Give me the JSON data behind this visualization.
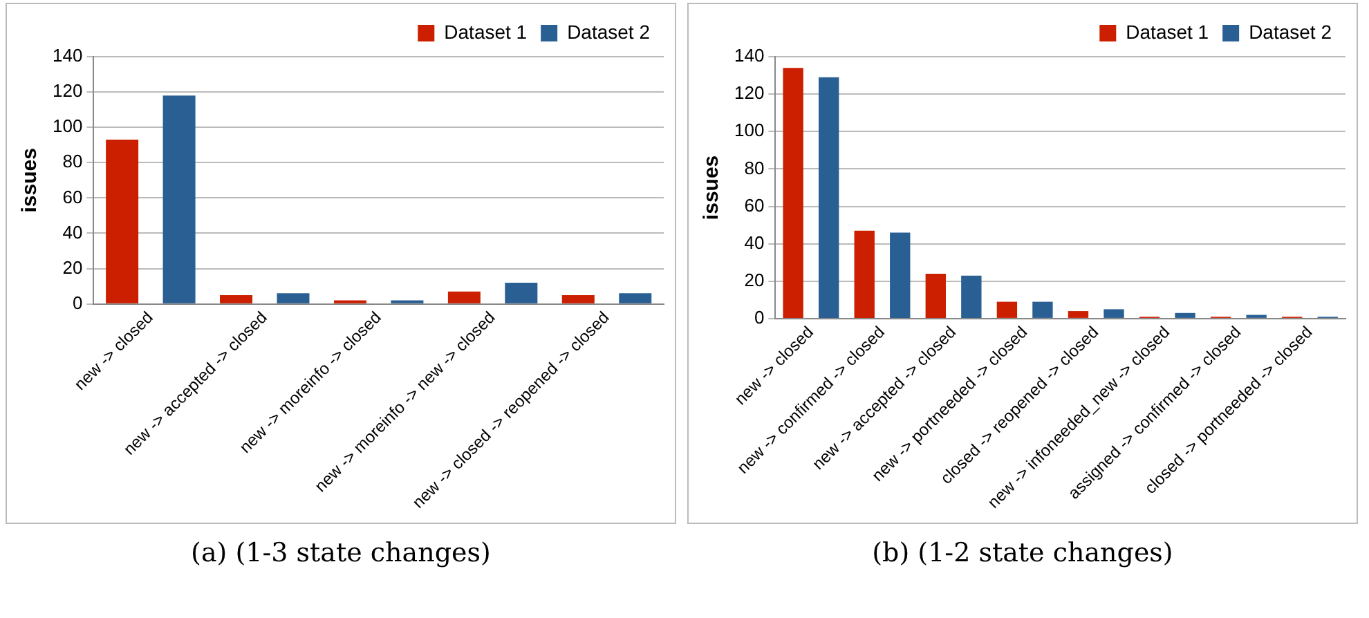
{
  "chart_data": [
    {
      "type": "bar",
      "ylabel": "issues",
      "categories": [
        "new -> closed",
        "new -> accepted -> closed",
        "new -> moreinfo -> closed",
        "new -> moreinfo -> new -> closed",
        "new -> closed -> reopened -> closed"
      ],
      "series": [
        {
          "name": "Dataset 1",
          "color": "#cc1f00",
          "values": [
            93,
            5,
            2,
            7,
            5
          ]
        },
        {
          "name": "Dataset 2",
          "color": "#2a5f93",
          "values": [
            118,
            6,
            2,
            12,
            6
          ]
        }
      ],
      "ylim": [
        0,
        140
      ],
      "yticks": [
        0,
        20,
        40,
        60,
        80,
        100,
        120,
        140
      ],
      "grid": "y",
      "legend": "top right",
      "annotations": [
        "(a) (1-3 state changes)"
      ]
    },
    {
      "type": "bar",
      "ylabel": "issues",
      "categories": [
        "new -> closed",
        "new -> confirmed -> closed",
        "new -> accepted -> closed",
        "new -> portneeded -> closed",
        "closed -> reopened -> closed",
        "new -> infoneeded_new -> closed",
        "assigned -> confirmed -> closed",
        "closed -> portneeded -> closed"
      ],
      "series": [
        {
          "name": "Dataset 1",
          "color": "#cc1f00",
          "values": [
            134,
            47,
            24,
            9,
            4,
            1,
            1,
            1
          ]
        },
        {
          "name": "Dataset 2",
          "color": "#2a5f93",
          "values": [
            129,
            46,
            23,
            9,
            5,
            3,
            2,
            1
          ]
        }
      ],
      "ylim": [
        0,
        140
      ],
      "yticks": [
        0,
        20,
        40,
        60,
        80,
        100,
        120,
        140
      ],
      "grid": "y",
      "legend": "top right",
      "annotations": [
        "(b) (1-2 state changes)"
      ]
    }
  ]
}
